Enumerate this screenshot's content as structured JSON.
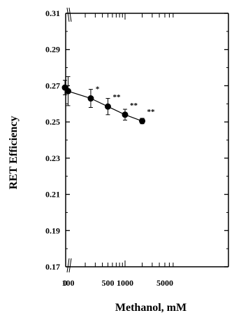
{
  "chart_data": {
    "type": "line",
    "title": "",
    "xlabel": "Methanol, mM",
    "ylabel": "RET Efficiency",
    "x_scale": "log with broken axis at 0",
    "ylim": [
      0.17,
      0.31
    ],
    "y_ticks": [
      0.17,
      0.19,
      0.21,
      0.23,
      0.25,
      0.27,
      0.29,
      0.31
    ],
    "y_tick_labels": [
      "0.17",
      "0.19",
      "0.21",
      "0.23",
      "0.25",
      "0.27",
      "0.29",
      "0.31"
    ],
    "x_tick_labels": [
      {
        "value": 0,
        "label": "0"
      },
      {
        "value": 100,
        "label": "100"
      },
      {
        "value": 500,
        "label": "500"
      },
      {
        "value": 1000,
        "label": "1000"
      },
      {
        "value": 5000,
        "label": "5000"
      }
    ],
    "grid": false,
    "series": [
      {
        "points": [
          {
            "x": 0,
            "y": 0.269,
            "err": 0.004,
            "sig": ""
          },
          {
            "x": 100,
            "y": 0.267,
            "err": 0.008,
            "sig": ""
          },
          {
            "x": 250,
            "y": 0.263,
            "err": 0.005,
            "sig": "*"
          },
          {
            "x": 500,
            "y": 0.2585,
            "err": 0.0045,
            "sig": "**"
          },
          {
            "x": 1000,
            "y": 0.254,
            "err": 0.003,
            "sig": "**"
          },
          {
            "x": 2000,
            "y": 0.2505,
            "err": 0.0015,
            "sig": "**"
          }
        ]
      }
    ]
  }
}
